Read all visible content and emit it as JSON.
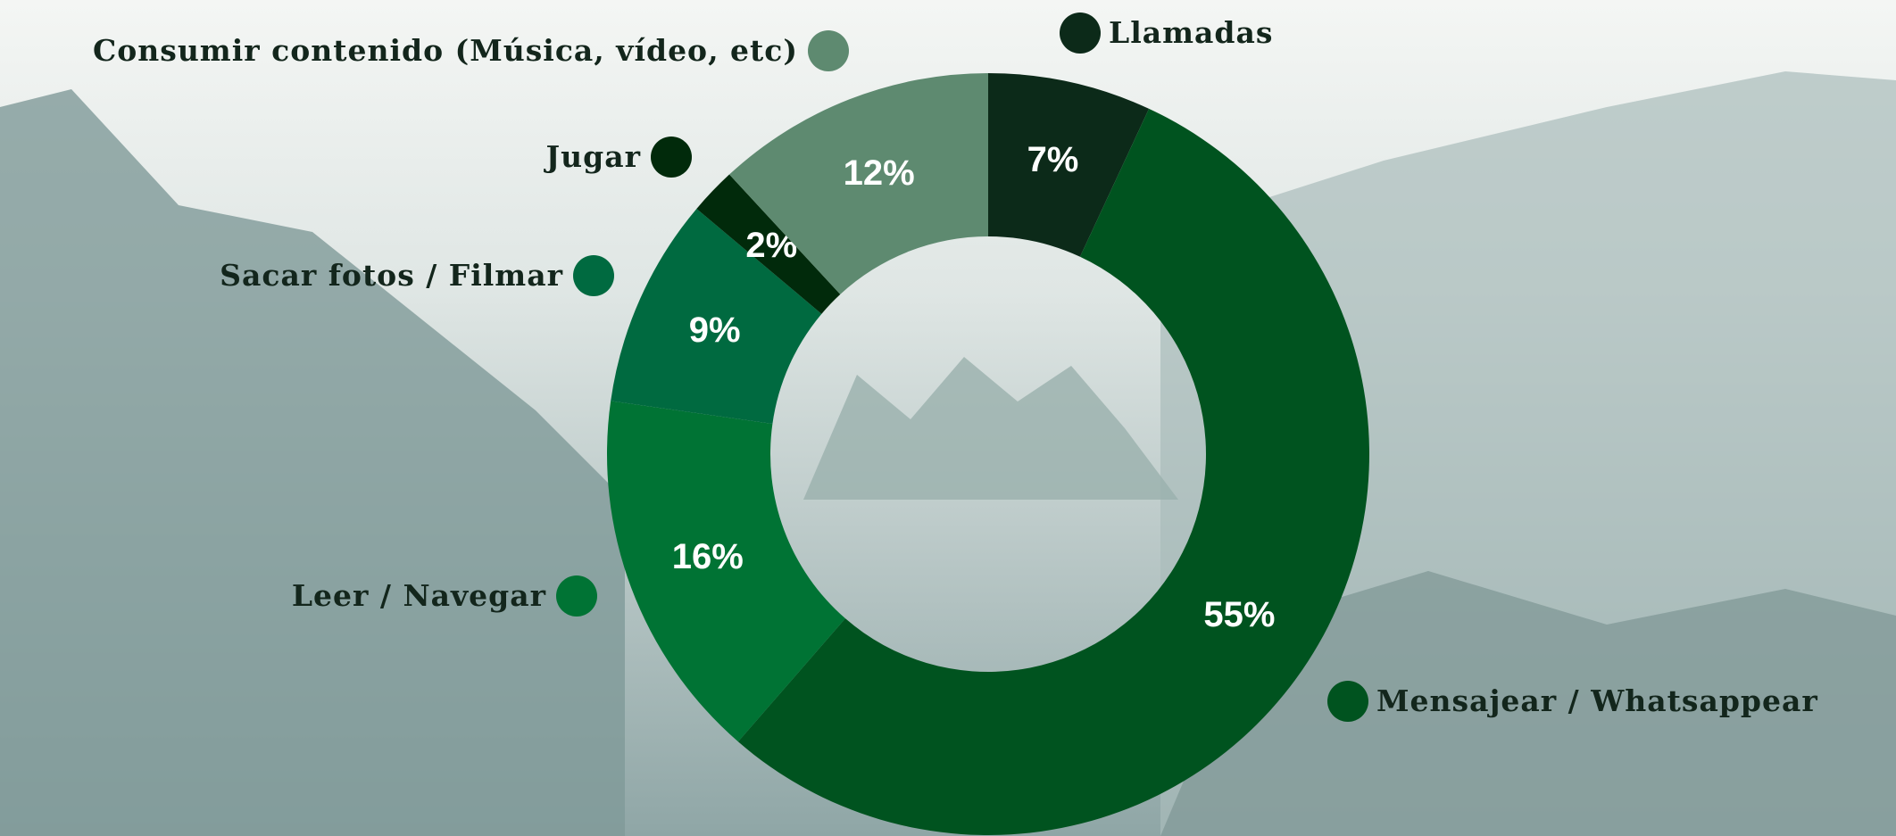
{
  "chart_data": {
    "type": "donut",
    "categories": [
      "Llamadas",
      "Mensajear / Whatsappear",
      "Leer / Navegar",
      "Sacar fotos / Filmar",
      "Jugar",
      "Consumir contenido (Música, vídeo, etc)"
    ],
    "values": [
      7,
      55,
      16,
      9,
      2,
      12
    ],
    "value_labels": [
      "7%",
      "55%",
      "16%",
      "9%",
      "2%",
      "12%"
    ],
    "colors": [
      "#0c2a19",
      "#00531f",
      "#007334",
      "#006a40",
      "#012a0b",
      "#5e8a70"
    ]
  }
}
